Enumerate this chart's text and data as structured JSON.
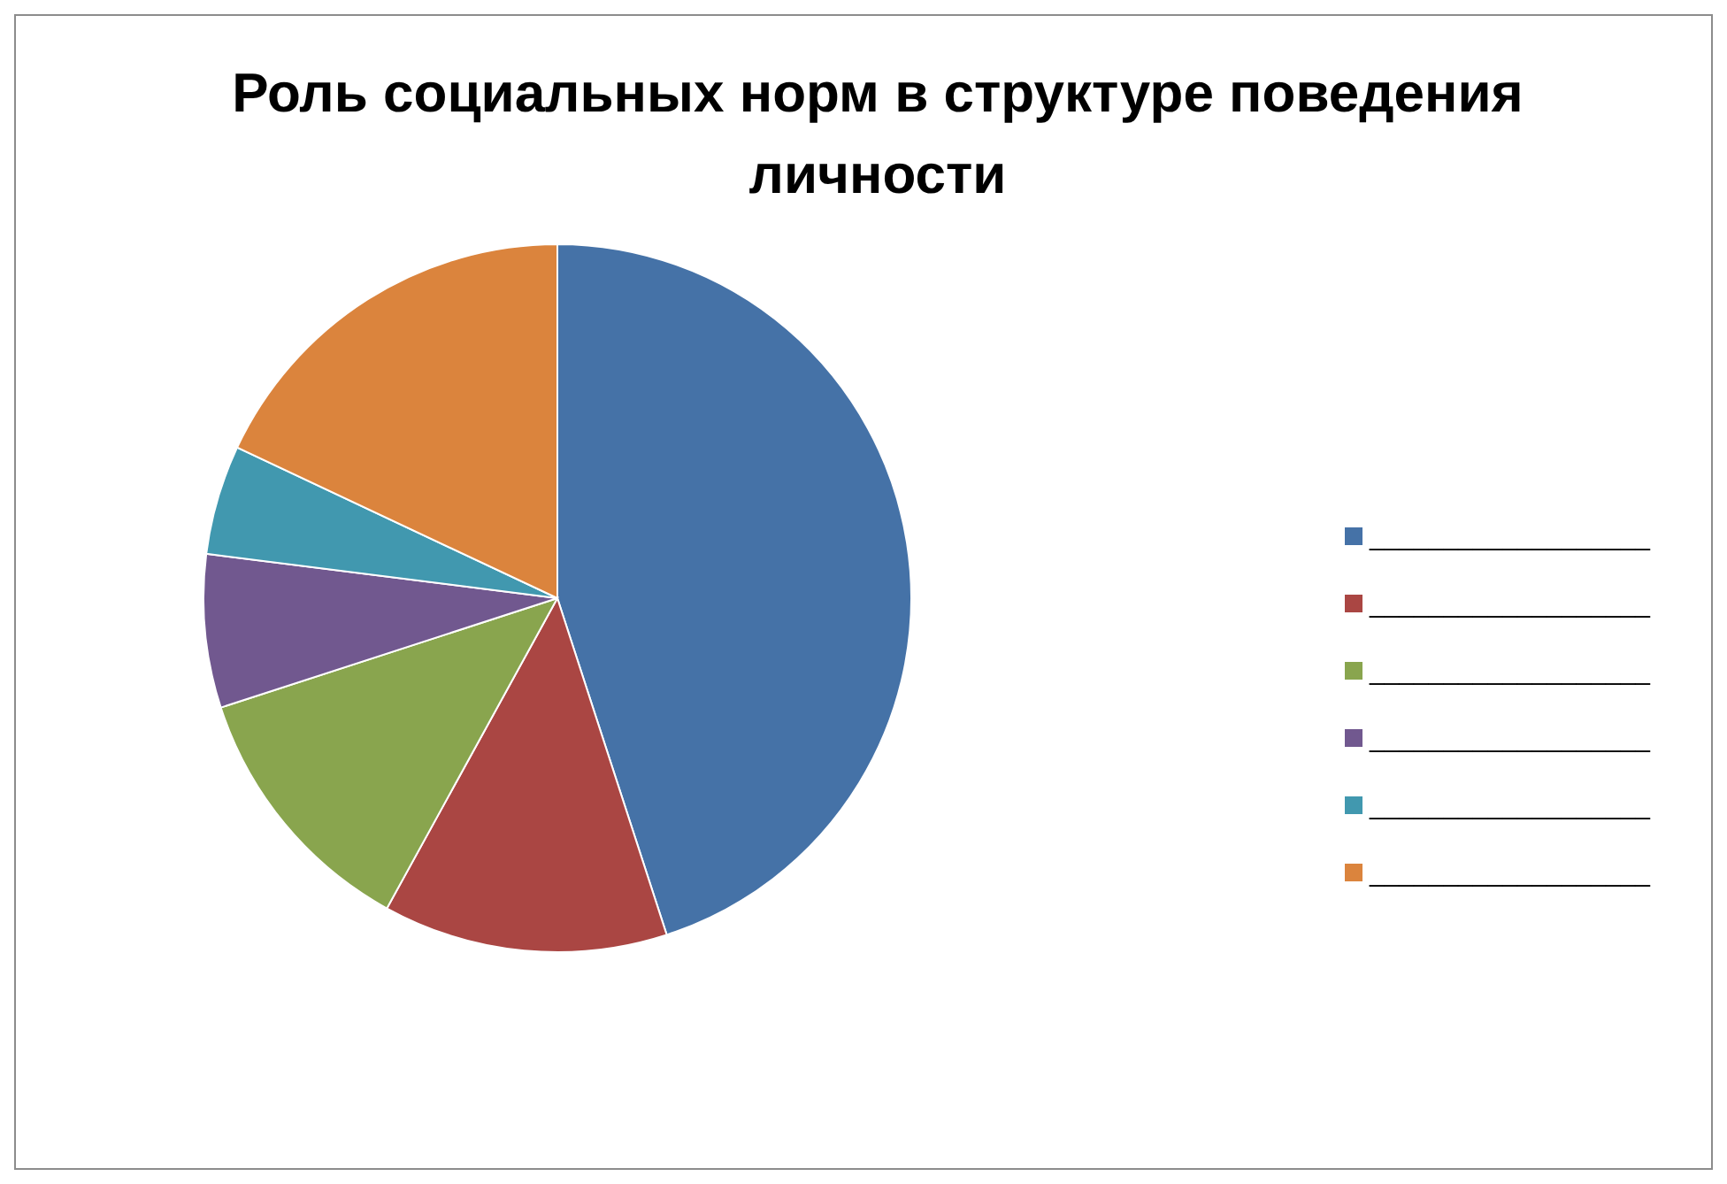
{
  "chart_data": {
    "type": "pie",
    "title": "Роль социальных норм в структуре поведения личности",
    "categories": [
      "___________________",
      "___________________",
      "___________________",
      "___________________",
      "___________________",
      "___________________"
    ],
    "values": [
      45,
      13,
      12,
      7,
      5,
      18
    ],
    "colors": [
      "#4572a7",
      "#aa4643",
      "#89a54e",
      "#71588f",
      "#4198af",
      "#db843d"
    ],
    "legend": "right"
  }
}
